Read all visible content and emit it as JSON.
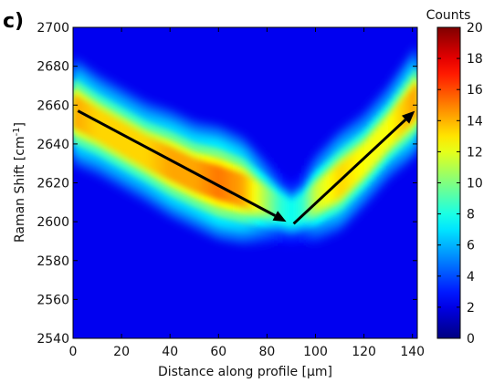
{
  "panel_label": "c)",
  "colorbar_title": "Counts",
  "chart_data": {
    "type": "heatmap",
    "title": "",
    "xlabel": "Distance along profile [µm]",
    "ylabel_main": "Raman Shift [cm",
    "ylabel_sup": "-1",
    "ylabel_end": "]",
    "xlim": [
      0,
      142
    ],
    "ylim": [
      2540,
      2700
    ],
    "x_ticks": [
      0,
      20,
      40,
      60,
      80,
      100,
      120,
      140
    ],
    "y_ticks": [
      2540,
      2560,
      2580,
      2600,
      2620,
      2640,
      2660,
      2680,
      2700
    ],
    "colorbar": {
      "range": [
        0,
        20
      ],
      "ticks": [
        0,
        2,
        4,
        6,
        8,
        10,
        12,
        14,
        16,
        18,
        20
      ],
      "colormap": "jet"
    },
    "band_center": {
      "x": [
        0,
        10,
        20,
        30,
        40,
        50,
        60,
        70,
        80,
        85,
        90,
        95,
        100,
        110,
        120,
        130,
        140,
        142
      ],
      "y": [
        2657,
        2650,
        2643,
        2636,
        2630,
        2624,
        2620,
        2616,
        2610,
        2607,
        2604,
        2607,
        2612,
        2621,
        2632,
        2646,
        2660,
        2663
      ]
    },
    "band_peak_counts": {
      "x": [
        0,
        10,
        20,
        30,
        40,
        50,
        60,
        70,
        80,
        85,
        90,
        95,
        100,
        110,
        120,
        130,
        140,
        142
      ],
      "values": [
        15,
        14,
        14,
        14,
        15,
        15,
        16,
        15,
        11,
        9,
        8,
        9,
        12,
        14,
        13,
        13,
        15,
        15
      ]
    },
    "arrows": [
      {
        "from": [
          2,
          2657
        ],
        "to": [
          88,
          2600
        ]
      },
      {
        "from": [
          91,
          2599
        ],
        "to": [
          141,
          2657
        ]
      }
    ]
  }
}
